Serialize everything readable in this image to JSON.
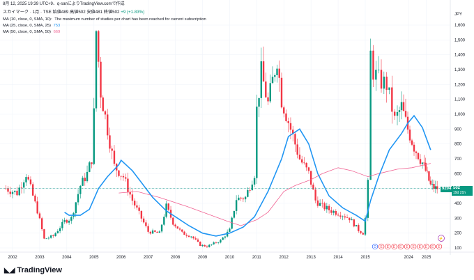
{
  "header": {
    "timestamp_line": "8月 12, 2025 19:39 UTC+9、q-sanによりTradingView.comで作成",
    "title_prefix": "スカイマーク · 1月 · TSE",
    "ohlc": "始値489 高値502 安値481 終値502",
    "change": "+9 (+1.83%)"
  },
  "studies": [
    {
      "label": "MA (10, close, 0, SMA, 10)",
      "value": "The maximum number of studies per chart has been reached for current subscription",
      "color": "#131722"
    },
    {
      "label": "MA (25, close, 0, SMA, 25)",
      "value": "753",
      "color": "#2196f3"
    },
    {
      "label": "MA (50, close, 0, SMA, 50)",
      "value": "669",
      "color": "#f06292"
    }
  ],
  "price_axis": {
    "unit": "JPY",
    "ticks": [
      "1,600",
      "1,500",
      "1,400",
      "1,300",
      "1,200",
      "1,100",
      "1,000",
      "900",
      "800",
      "700",
      "600",
      "500",
      "400",
      "300",
      "200",
      "100"
    ]
  },
  "time_axis": {
    "ticks": [
      "2002",
      "2003",
      "2004",
      "2005",
      "2006",
      "2007",
      "2008",
      "2009",
      "2010",
      "2011",
      "2012",
      "2013",
      "2014",
      "2015",
      "2024",
      "2025"
    ]
  },
  "last_price_badge": {
    "price": "502",
    "countdown": "19d 21h"
  },
  "close_badge": "9204",
  "event_icons": [
    "D",
    "E",
    "E",
    "E",
    "E",
    "E",
    "E",
    "E",
    "E",
    "E",
    "E"
  ],
  "logo_text": "TradingView",
  "chart_data": {
    "type": "candlestick",
    "title": "スカイマーク · 1月 · TSE",
    "ylabel": "JPY",
    "ylim": [
      80,
      1660
    ],
    "up_color": "#089981",
    "down_color": "#f23645",
    "ma25_color": "#2196f3",
    "ma50_color": "#f06292",
    "x_years": [
      "2002",
      "2003",
      "2004",
      "2005",
      "2006",
      "2007",
      "2008",
      "2009",
      "2010",
      "2011",
      "2012",
      "2013",
      "2014",
      "2015",
      "2024",
      "2025"
    ],
    "close_path": [
      [
        "2001-10",
        500
      ],
      [
        "2002-03",
        470
      ],
      [
        "2002-07",
        600
      ],
      [
        "2002-12",
        350
      ],
      [
        "2003-03",
        160
      ],
      [
        "2003-07",
        180
      ],
      [
        "2003-12",
        280
      ],
      [
        "2004-03",
        300
      ],
      [
        "2004-07",
        520
      ],
      [
        "2004-10",
        600
      ],
      [
        "2004-12",
        700
      ],
      [
        "2005-01",
        1000
      ],
      [
        "2005-02",
        1560
      ],
      [
        "2005-04",
        1150
      ],
      [
        "2005-07",
        900
      ],
      [
        "2005-10",
        650
      ],
      [
        "2006-02",
        580
      ],
      [
        "2006-06",
        420
      ],
      [
        "2006-10",
        300
      ],
      [
        "2007-01",
        210
      ],
      [
        "2007-06",
        200
      ],
      [
        "2007-09",
        380
      ],
      [
        "2007-12",
        270
      ],
      [
        "2008-04",
        200
      ],
      [
        "2008-08",
        180
      ],
      [
        "2008-12",
        120
      ],
      [
        "2009-03",
        110
      ],
      [
        "2009-09",
        150
      ],
      [
        "2010-01",
        220
      ],
      [
        "2010-04",
        430
      ],
      [
        "2010-08",
        440
      ],
      [
        "2010-12",
        600
      ],
      [
        "2011-01",
        1030
      ],
      [
        "2011-03",
        1280
      ],
      [
        "2011-06",
        1070
      ],
      [
        "2011-10",
        1380
      ],
      [
        "2011-12",
        1100
      ],
      [
        "2012-04",
        900
      ],
      [
        "2012-08",
        700
      ],
      [
        "2012-12",
        600
      ],
      [
        "2013-03",
        420
      ],
      [
        "2013-06",
        380
      ],
      [
        "2013-10",
        350
      ],
      [
        "2014-02",
        330
      ],
      [
        "2014-06",
        300
      ],
      [
        "2014-10",
        220
      ],
      [
        "2014-12",
        200
      ],
      [
        "2015-01",
        300
      ],
      [
        "2015-02",
        530
      ],
      [
        "2015-03",
        1400
      ],
      [
        "2015-04",
        1290
      ],
      [
        "2015-06",
        1230
      ],
      [
        "2015-09",
        1200
      ],
      [
        "2015-12",
        960
      ],
      [
        "2016-03",
        1050
      ],
      [
        "2016-06",
        900
      ],
      [
        "2016-09",
        780
      ],
      [
        "2016-12",
        700
      ],
      [
        "2017-03",
        620
      ],
      [
        "2017-06",
        520
      ],
      [
        "2017-09",
        500
      ],
      [
        "2017-10",
        502
      ]
    ],
    "ma25_path": [
      [
        "2003-12",
        340
      ],
      [
        "2004-02",
        320
      ],
      [
        "2004-07",
        320
      ],
      [
        "2004-11",
        360
      ],
      [
        "2005-03",
        500
      ],
      [
        "2005-07",
        580
      ],
      [
        "2005-12",
        660
      ],
      [
        "2006-01",
        690
      ],
      [
        "2006-06",
        620
      ],
      [
        "2006-10",
        540
      ],
      [
        "2007-03",
        440
      ],
      [
        "2007-09",
        350
      ],
      [
        "2008-02",
        300
      ],
      [
        "2008-07",
        250
      ],
      [
        "2009-01",
        200
      ],
      [
        "2009-07",
        180
      ],
      [
        "2010-01",
        200
      ],
      [
        "2010-07",
        240
      ],
      [
        "2010-12",
        310
      ],
      [
        "2011-06",
        480
      ],
      [
        "2011-12",
        700
      ],
      [
        "2012-03",
        850
      ],
      [
        "2012-08",
        900
      ],
      [
        "2012-12",
        800
      ],
      [
        "2013-04",
        600
      ],
      [
        "2013-09",
        450
      ],
      [
        "2014-03",
        370
      ],
      [
        "2014-09",
        320
      ],
      [
        "2015-01",
        280
      ],
      [
        "2015-03",
        420
      ],
      [
        "2015-06",
        580
      ],
      [
        "2015-10",
        760
      ],
      [
        "2016-03",
        870
      ],
      [
        "2016-06",
        940
      ],
      [
        "2016-09",
        990
      ],
      [
        "2017-01",
        910
      ],
      [
        "2017-06",
        760
      ]
    ],
    "ma50_path": [
      [
        "2005-12",
        470
      ],
      [
        "2006-08",
        480
      ],
      [
        "2007-06",
        440
      ],
      [
        "2008-06",
        380
      ],
      [
        "2009-03",
        330
      ],
      [
        "2009-12",
        280
      ],
      [
        "2010-06",
        250
      ],
      [
        "2011-01",
        290
      ],
      [
        "2011-06",
        340
      ],
      [
        "2012-01",
        480
      ],
      [
        "2012-06",
        520
      ],
      [
        "2013-01",
        560
      ],
      [
        "2013-06",
        600
      ],
      [
        "2014-01",
        640
      ],
      [
        "2014-07",
        620
      ],
      [
        "2015-02",
        580
      ],
      [
        "2015-06",
        600
      ],
      [
        "2016-01",
        630
      ],
      [
        "2016-08",
        640
      ],
      [
        "2017-06",
        669
      ]
    ]
  }
}
